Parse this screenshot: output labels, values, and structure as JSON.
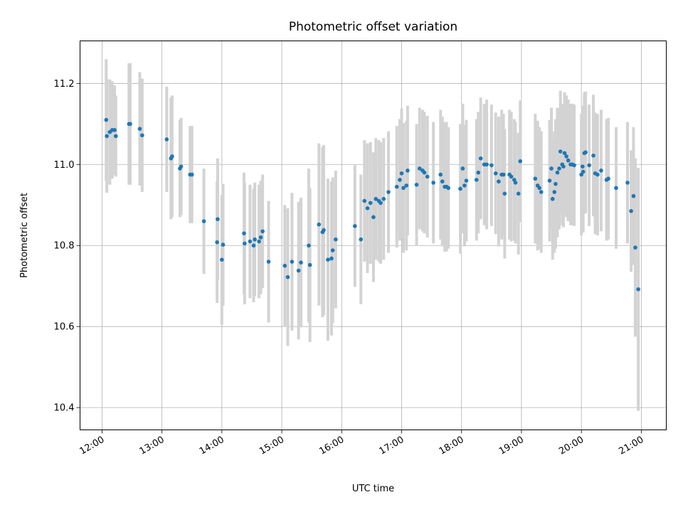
{
  "chart_data": {
    "type": "scatter",
    "title": "Photometric offset variation",
    "xlabel": "UTC time",
    "ylabel": "Photometric offset",
    "xlim": [
      11.633,
      21.417
    ],
    "ylim": [
      10.345,
      11.305
    ],
    "x_ticks": [
      {
        "value": 12,
        "label": "12:00"
      },
      {
        "value": 13,
        "label": "13:00"
      },
      {
        "value": 14,
        "label": "14:00"
      },
      {
        "value": 15,
        "label": "15:00"
      },
      {
        "value": 16,
        "label": "16:00"
      },
      {
        "value": 17,
        "label": "17:00"
      },
      {
        "value": 18,
        "label": "18:00"
      },
      {
        "value": 19,
        "label": "19:00"
      },
      {
        "value": 20,
        "label": "20:00"
      },
      {
        "value": 21,
        "label": "21:00"
      }
    ],
    "y_ticks": [
      {
        "value": 10.4,
        "label": "10.4"
      },
      {
        "value": 10.6,
        "label": "10.6"
      },
      {
        "value": 10.8,
        "label": "10.8"
      },
      {
        "value": 11.0,
        "label": "11.0"
      },
      {
        "value": 11.2,
        "label": "11.2"
      }
    ],
    "grid": true,
    "point_color": "#1f77b4",
    "errorbar_color": "#d3d3d3",
    "x": [
      12.07,
      12.08,
      12.13,
      12.17,
      12.21,
      12.23,
      12.45,
      12.47,
      12.63,
      12.67,
      13.08,
      13.15,
      13.17,
      13.3,
      13.32,
      13.47,
      13.5,
      13.7,
      13.92,
      13.93,
      14.0,
      14.02,
      14.37,
      14.38,
      14.47,
      14.53,
      14.55,
      14.62,
      14.65,
      14.68,
      14.78,
      15.05,
      15.1,
      15.17,
      15.28,
      15.32,
      15.45,
      15.47,
      15.62,
      15.68,
      15.7,
      15.77,
      15.83,
      15.85,
      15.9,
      16.22,
      16.32,
      16.38,
      16.43,
      16.48,
      16.53,
      16.57,
      16.62,
      16.65,
      16.7,
      16.78,
      16.92,
      16.97,
      17.0,
      17.03,
      17.08,
      17.1,
      17.25,
      17.3,
      17.35,
      17.38,
      17.43,
      17.53,
      17.65,
      17.68,
      17.72,
      17.75,
      17.78,
      17.98,
      18.02,
      18.05,
      18.08,
      18.25,
      18.28,
      18.32,
      18.38,
      18.42,
      18.5,
      18.57,
      18.62,
      18.67,
      18.7,
      18.72,
      18.8,
      18.83,
      18.88,
      18.9,
      18.95,
      18.98,
      19.23,
      19.27,
      19.3,
      19.33,
      19.47,
      19.5,
      19.52,
      19.55,
      19.57,
      19.6,
      19.63,
      19.65,
      19.68,
      19.7,
      19.72,
      19.75,
      19.78,
      19.82,
      19.85,
      19.88,
      20.0,
      20.02,
      20.03,
      20.05,
      20.07,
      20.13,
      20.2,
      20.23,
      20.27,
      20.33,
      20.42,
      20.45,
      20.58,
      20.77,
      20.83,
      20.87,
      20.9,
      20.95
    ],
    "y": [
      11.11,
      11.07,
      11.08,
      11.085,
      11.085,
      11.07,
      11.1,
      11.1,
      11.088,
      11.072,
      11.062,
      11.015,
      11.02,
      10.99,
      10.995,
      10.975,
      10.975,
      10.86,
      10.808,
      10.865,
      10.765,
      10.802,
      10.83,
      10.805,
      10.81,
      10.8,
      10.815,
      10.81,
      10.82,
      10.835,
      10.76,
      10.75,
      10.722,
      10.76,
      10.738,
      10.758,
      10.8,
      10.752,
      10.852,
      10.833,
      10.838,
      10.765,
      10.768,
      10.788,
      10.815,
      10.848,
      10.815,
      10.91,
      10.892,
      10.905,
      10.87,
      10.915,
      10.91,
      10.905,
      10.915,
      10.932,
      10.945,
      10.962,
      10.978,
      10.942,
      10.948,
      10.985,
      10.95,
      10.99,
      10.985,
      10.98,
      10.97,
      10.955,
      10.975,
      10.958,
      10.945,
      10.945,
      10.942,
      10.94,
      10.99,
      10.948,
      10.96,
      10.962,
      10.98,
      11.015,
      11.0,
      11.0,
      10.998,
      10.978,
      10.958,
      10.975,
      10.975,
      10.928,
      10.975,
      10.97,
      10.962,
      10.955,
      10.928,
      11.008,
      10.965,
      10.948,
      10.942,
      10.932,
      10.96,
      10.99,
      10.915,
      10.932,
      10.952,
      10.98,
      10.99,
      11.032,
      11.0,
      10.995,
      11.028,
      11.02,
      11.01,
      11.0,
      11.0,
      10.998,
      10.975,
      10.995,
      10.982,
      11.028,
      11.03,
      10.998,
      11.022,
      10.978,
      10.975,
      10.985,
      10.962,
      10.965,
      10.942,
      10.955,
      10.885,
      10.922,
      10.795,
      10.692
    ],
    "yerr": [
      0.15,
      0.14,
      0.13,
      0.12,
      0.11,
      0.1,
      0.15,
      0.15,
      0.14,
      0.14,
      0.13,
      0.15,
      0.15,
      0.12,
      0.12,
      0.12,
      0.12,
      0.13,
      0.15,
      0.15,
      0.16,
      0.15,
      0.15,
      0.15,
      0.14,
      0.14,
      0.14,
      0.14,
      0.14,
      0.14,
      0.15,
      0.15,
      0.17,
      0.17,
      0.17,
      0.16,
      0.19,
      0.19,
      0.2,
      0.21,
      0.21,
      0.2,
      0.19,
      0.18,
      0.17,
      0.15,
      0.16,
      0.15,
      0.16,
      0.15,
      0.16,
      0.15,
      0.15,
      0.15,
      0.15,
      0.15,
      0.15,
      0.15,
      0.16,
      0.16,
      0.16,
      0.16,
      0.15,
      0.15,
      0.15,
      0.15,
      0.15,
      0.15,
      0.16,
      0.16,
      0.16,
      0.16,
      0.15,
      0.16,
      0.16,
      0.15,
      0.15,
      0.15,
      0.15,
      0.15,
      0.15,
      0.16,
      0.15,
      0.15,
      0.16,
      0.16,
      0.15,
      0.16,
      0.16,
      0.16,
      0.15,
      0.15,
      0.15,
      0.15,
      0.16,
      0.16,
      0.15,
      0.15,
      0.15,
      0.15,
      0.15,
      0.15,
      0.16,
      0.16,
      0.15,
      0.15,
      0.15,
      0.15,
      0.15,
      0.15,
      0.15,
      0.15,
      0.15,
      0.15,
      0.15,
      0.15,
      0.15,
      0.15,
      0.15,
      0.15,
      0.15,
      0.15,
      0.15,
      0.15,
      0.15,
      0.15,
      0.15,
      0.15,
      0.15,
      0.17,
      0.22,
      0.3
    ]
  }
}
